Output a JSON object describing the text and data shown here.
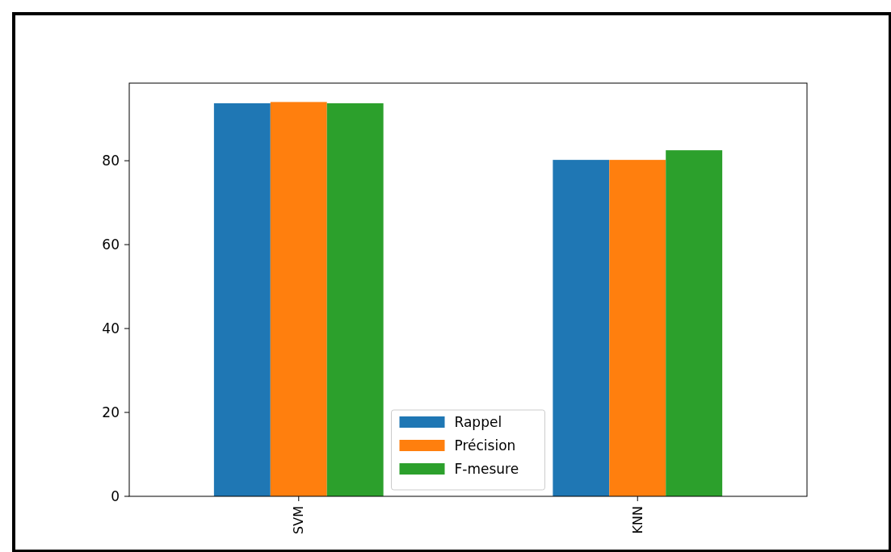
{
  "chart_data": {
    "type": "bar",
    "categories": [
      "SVM",
      "KNN"
    ],
    "series": [
      {
        "name": "Rappel",
        "color": "#1f77b4",
        "values": [
          93.7,
          80.2
        ]
      },
      {
        "name": "Précision",
        "color": "#ff7f0e",
        "values": [
          94.0,
          80.2
        ]
      },
      {
        "name": "F-mesure",
        "color": "#2ca02c",
        "values": [
          93.7,
          82.5
        ]
      }
    ],
    "ylim": [
      0,
      98.5
    ],
    "yticks": [
      0,
      20,
      40,
      60,
      80
    ],
    "legend": "bottom",
    "grid": false
  }
}
